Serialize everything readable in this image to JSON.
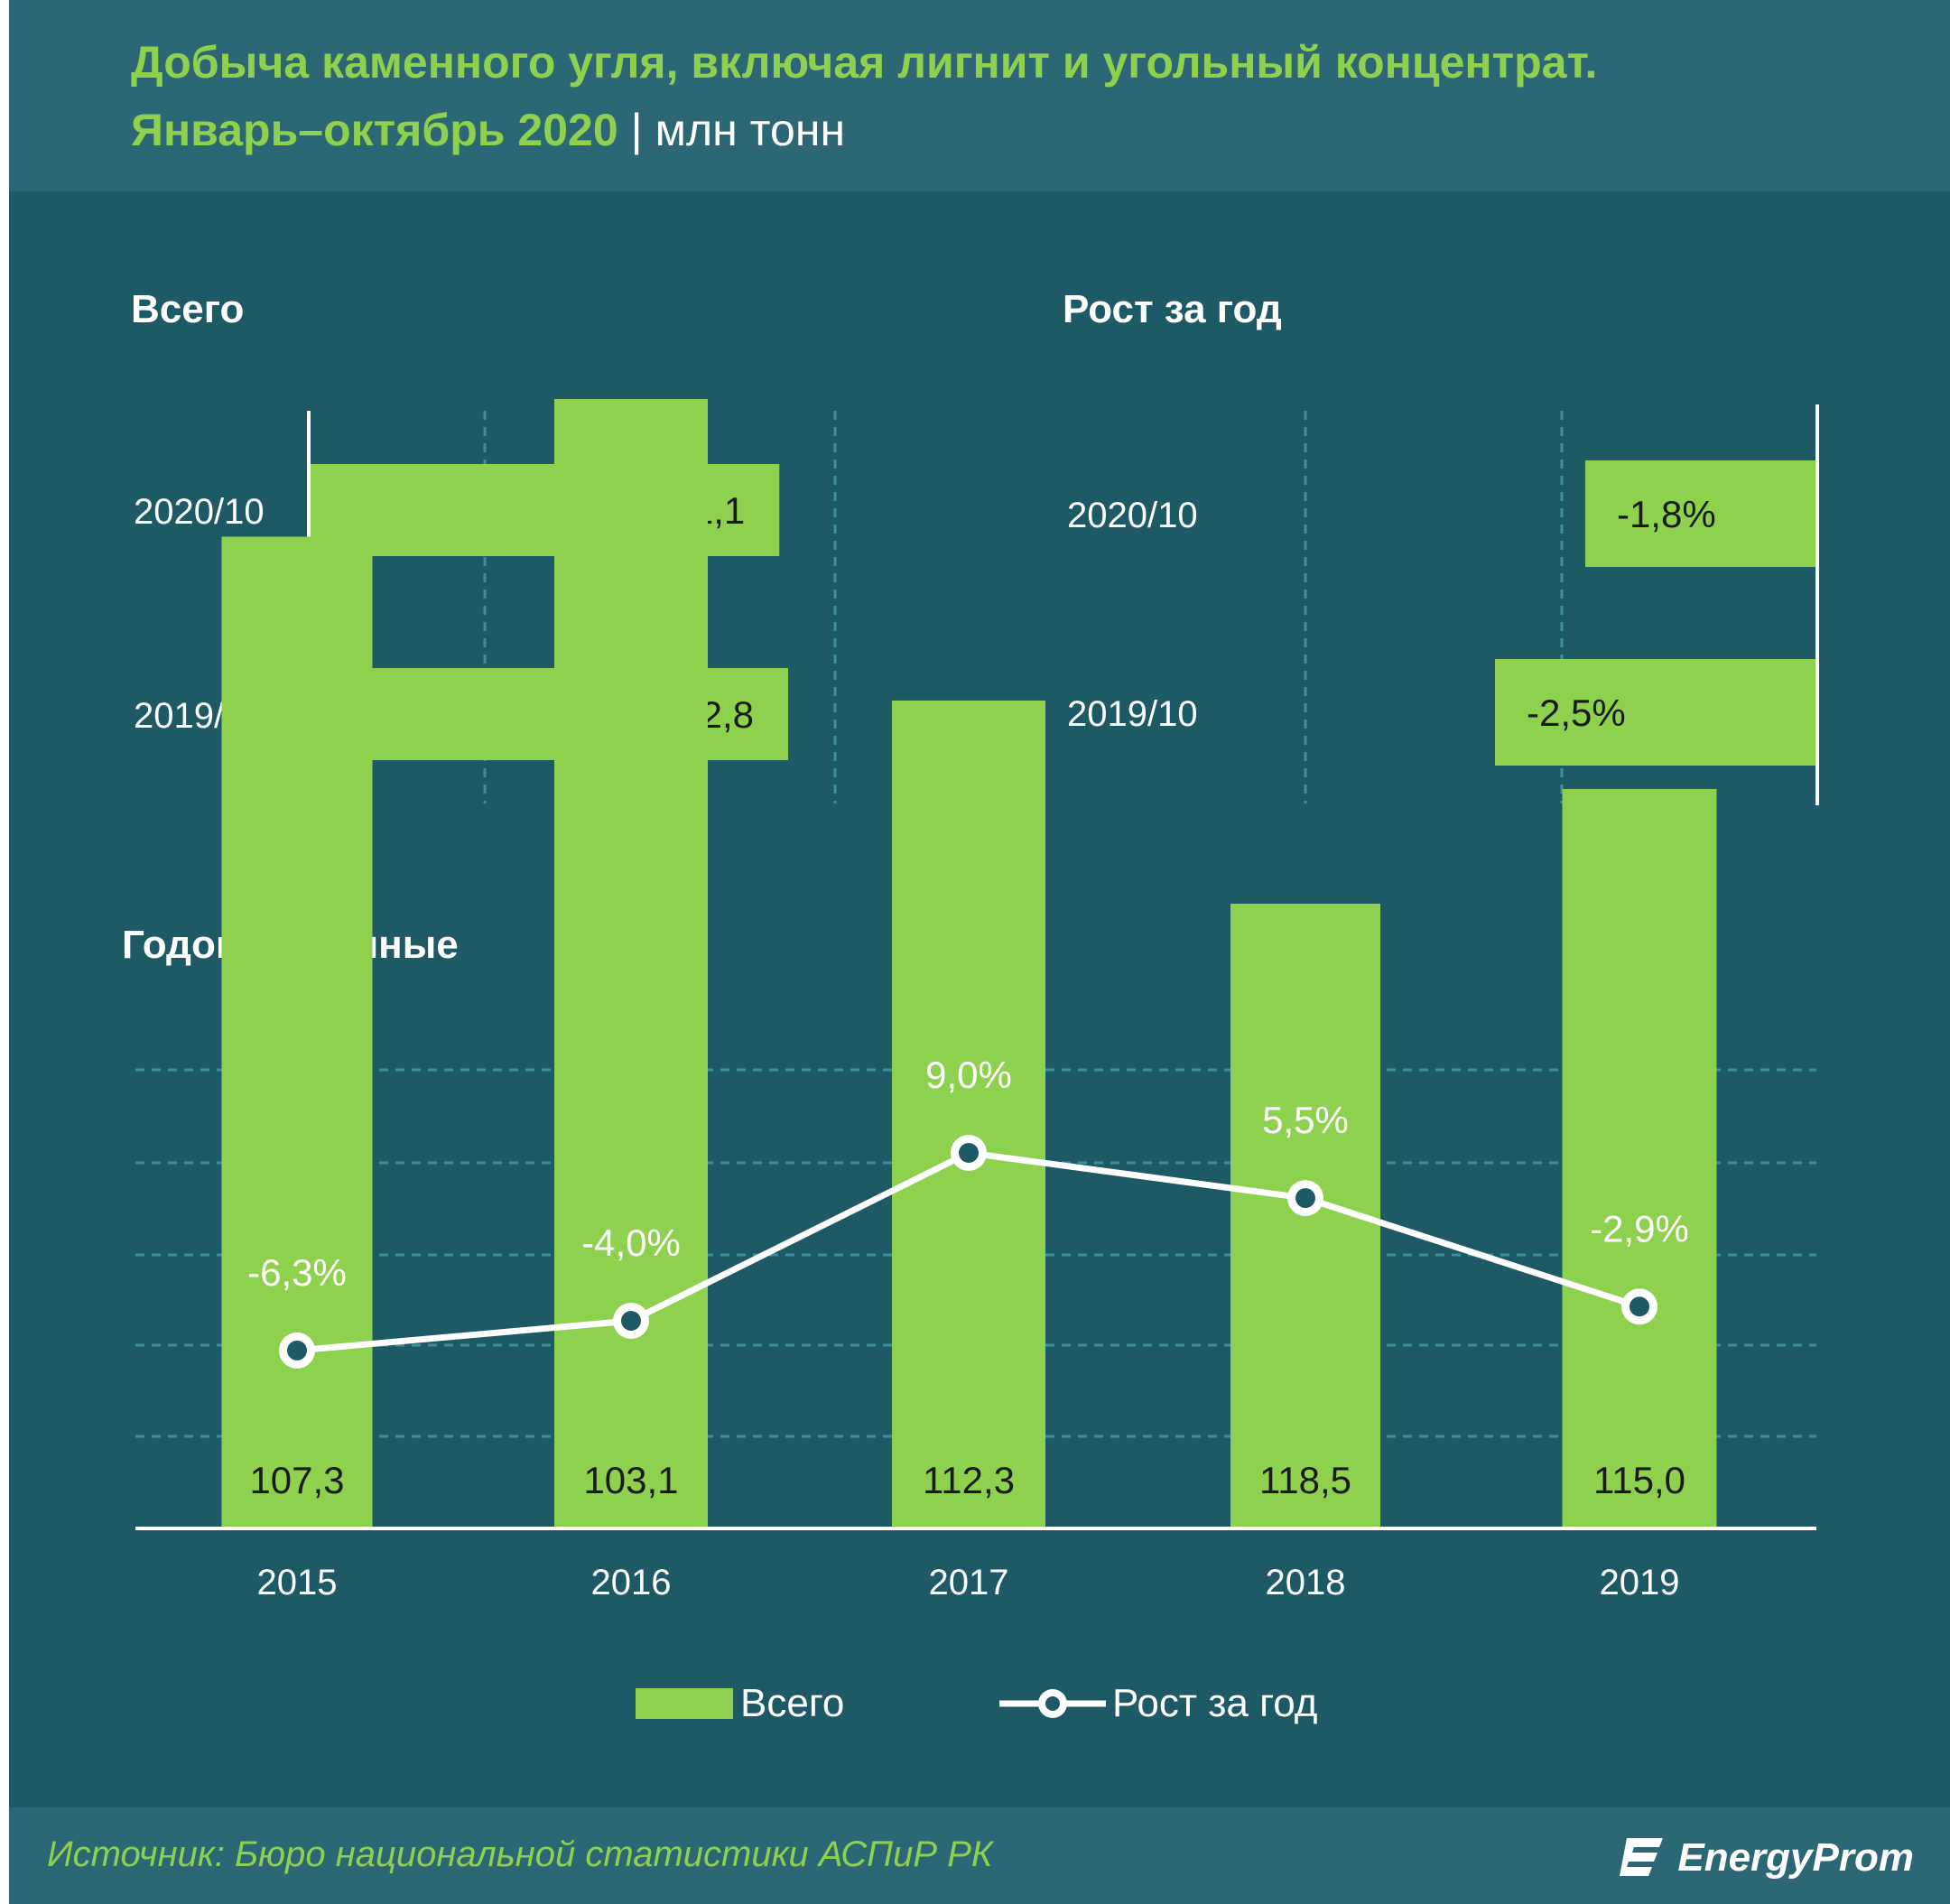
{
  "header": {
    "title_line1": "Добыча каменного угля, включая лигнит и угольный концентрат.",
    "title_line2": "Январь–октябрь 2020",
    "separator": "|",
    "unit": "млн тонн"
  },
  "sections": {
    "total": "Всего",
    "growth": "Рост за год",
    "annual": "Годовые данные"
  },
  "chart_data": [
    {
      "type": "bar",
      "orientation": "horizontal",
      "title": "Всего",
      "categories": [
        "2020/10",
        "2019/10"
      ],
      "values": [
        91.1,
        92.8
      ],
      "labels": [
        "91,1",
        "92,8"
      ],
      "grid": true
    },
    {
      "type": "bar",
      "orientation": "horizontal",
      "title": "Рост за год",
      "categories": [
        "2020/10",
        "2019/10"
      ],
      "values": [
        -1.8,
        -2.5
      ],
      "labels": [
        "-1,8%",
        "-2,5%"
      ],
      "grid": true
    },
    {
      "type": "bar",
      "title": "Годовые данные",
      "categories": [
        "2015",
        "2016",
        "2017",
        "2018",
        "2019"
      ],
      "series": [
        {
          "name": "Всего",
          "type": "bar",
          "values": [
            107.3,
            103.1,
            112.3,
            118.5,
            115.0
          ],
          "labels": [
            "107,3",
            "103,1",
            "112,3",
            "118,5",
            "115,0"
          ]
        },
        {
          "name": "Рост за год",
          "type": "line",
          "values": [
            -6.3,
            -4.0,
            9.0,
            5.5,
            -2.9
          ],
          "labels": [
            "-6,3%",
            "-4,0%",
            "9,0%",
            "5,5%",
            "-2,9%"
          ]
        }
      ],
      "legend": "bottom",
      "grid": true
    }
  ],
  "footer": {
    "source": "Источник: Бюро национальной  статистики АСПиР РК",
    "logo_text": "EnergyProm"
  },
  "colors": {
    "background": "#1d5a66",
    "header_band": "#2c6775",
    "bar": "#8ed14f",
    "line": "#ffffff",
    "grid": "#3f8e9c"
  }
}
